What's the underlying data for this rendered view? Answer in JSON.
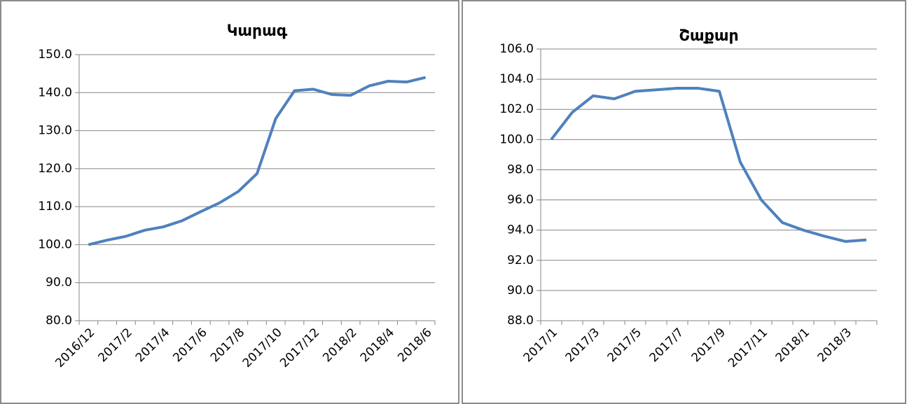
{
  "chart_data": [
    {
      "type": "line",
      "title": "Կարագ",
      "categories": [
        "2016/12",
        null,
        "2017/2",
        null,
        "2017/4",
        null,
        "2017/6",
        null,
        "2017/8",
        null,
        "2017/10",
        null,
        "2017/12",
        null,
        "2018/2",
        null,
        "2018/4",
        null,
        "2018/6"
      ],
      "series": [
        {
          "color": "#4f81bd",
          "values": [
            100.0,
            101.2,
            102.2,
            103.8,
            104.7,
            106.3,
            108.7,
            111.0,
            114.0,
            118.7,
            133.2,
            140.5,
            140.9,
            139.5,
            139.3,
            141.8,
            143.0,
            142.8,
            144.0
          ]
        }
      ],
      "ylim": [
        80,
        150
      ],
      "yticks": [
        {
          "value": 80,
          "label": "80.0"
        },
        {
          "value": 90,
          "label": "90.0"
        },
        {
          "value": 100,
          "label": "100.0"
        },
        {
          "value": 110,
          "label": "110.0"
        },
        {
          "value": 120,
          "label": "120.0"
        },
        {
          "value": 130,
          "label": "130.0"
        },
        {
          "value": 140,
          "label": "140.0"
        },
        {
          "value": 150,
          "label": "150.0"
        }
      ],
      "grid": true
    },
    {
      "type": "line",
      "title": "Շաքար",
      "categories": [
        "2017/1",
        null,
        "2017/3",
        null,
        "2017/5",
        null,
        "2017/7",
        null,
        "2017/9",
        null,
        "2017/11",
        null,
        "2018/1",
        null,
        "2018/3",
        null
      ],
      "series": [
        {
          "color": "#4f81bd",
          "values": [
            100.0,
            101.8,
            102.9,
            102.7,
            103.2,
            103.3,
            103.4,
            103.4,
            103.2,
            98.5,
            96.0,
            94.5,
            94.0,
            93.6,
            93.25,
            93.35
          ]
        }
      ],
      "ylim": [
        88,
        106
      ],
      "yticks": [
        {
          "value": 88,
          "label": "88.0"
        },
        {
          "value": 90,
          "label": "90.0"
        },
        {
          "value": 92,
          "label": "92.0"
        },
        {
          "value": 94,
          "label": "94.0"
        },
        {
          "value": 96,
          "label": "96.0"
        },
        {
          "value": 98,
          "label": "98.0"
        },
        {
          "value": 100,
          "label": "100.0"
        },
        {
          "value": 102,
          "label": "102.0"
        },
        {
          "value": 104,
          "label": "104.0"
        },
        {
          "value": 106,
          "label": "106.0"
        }
      ],
      "grid": true
    }
  ]
}
